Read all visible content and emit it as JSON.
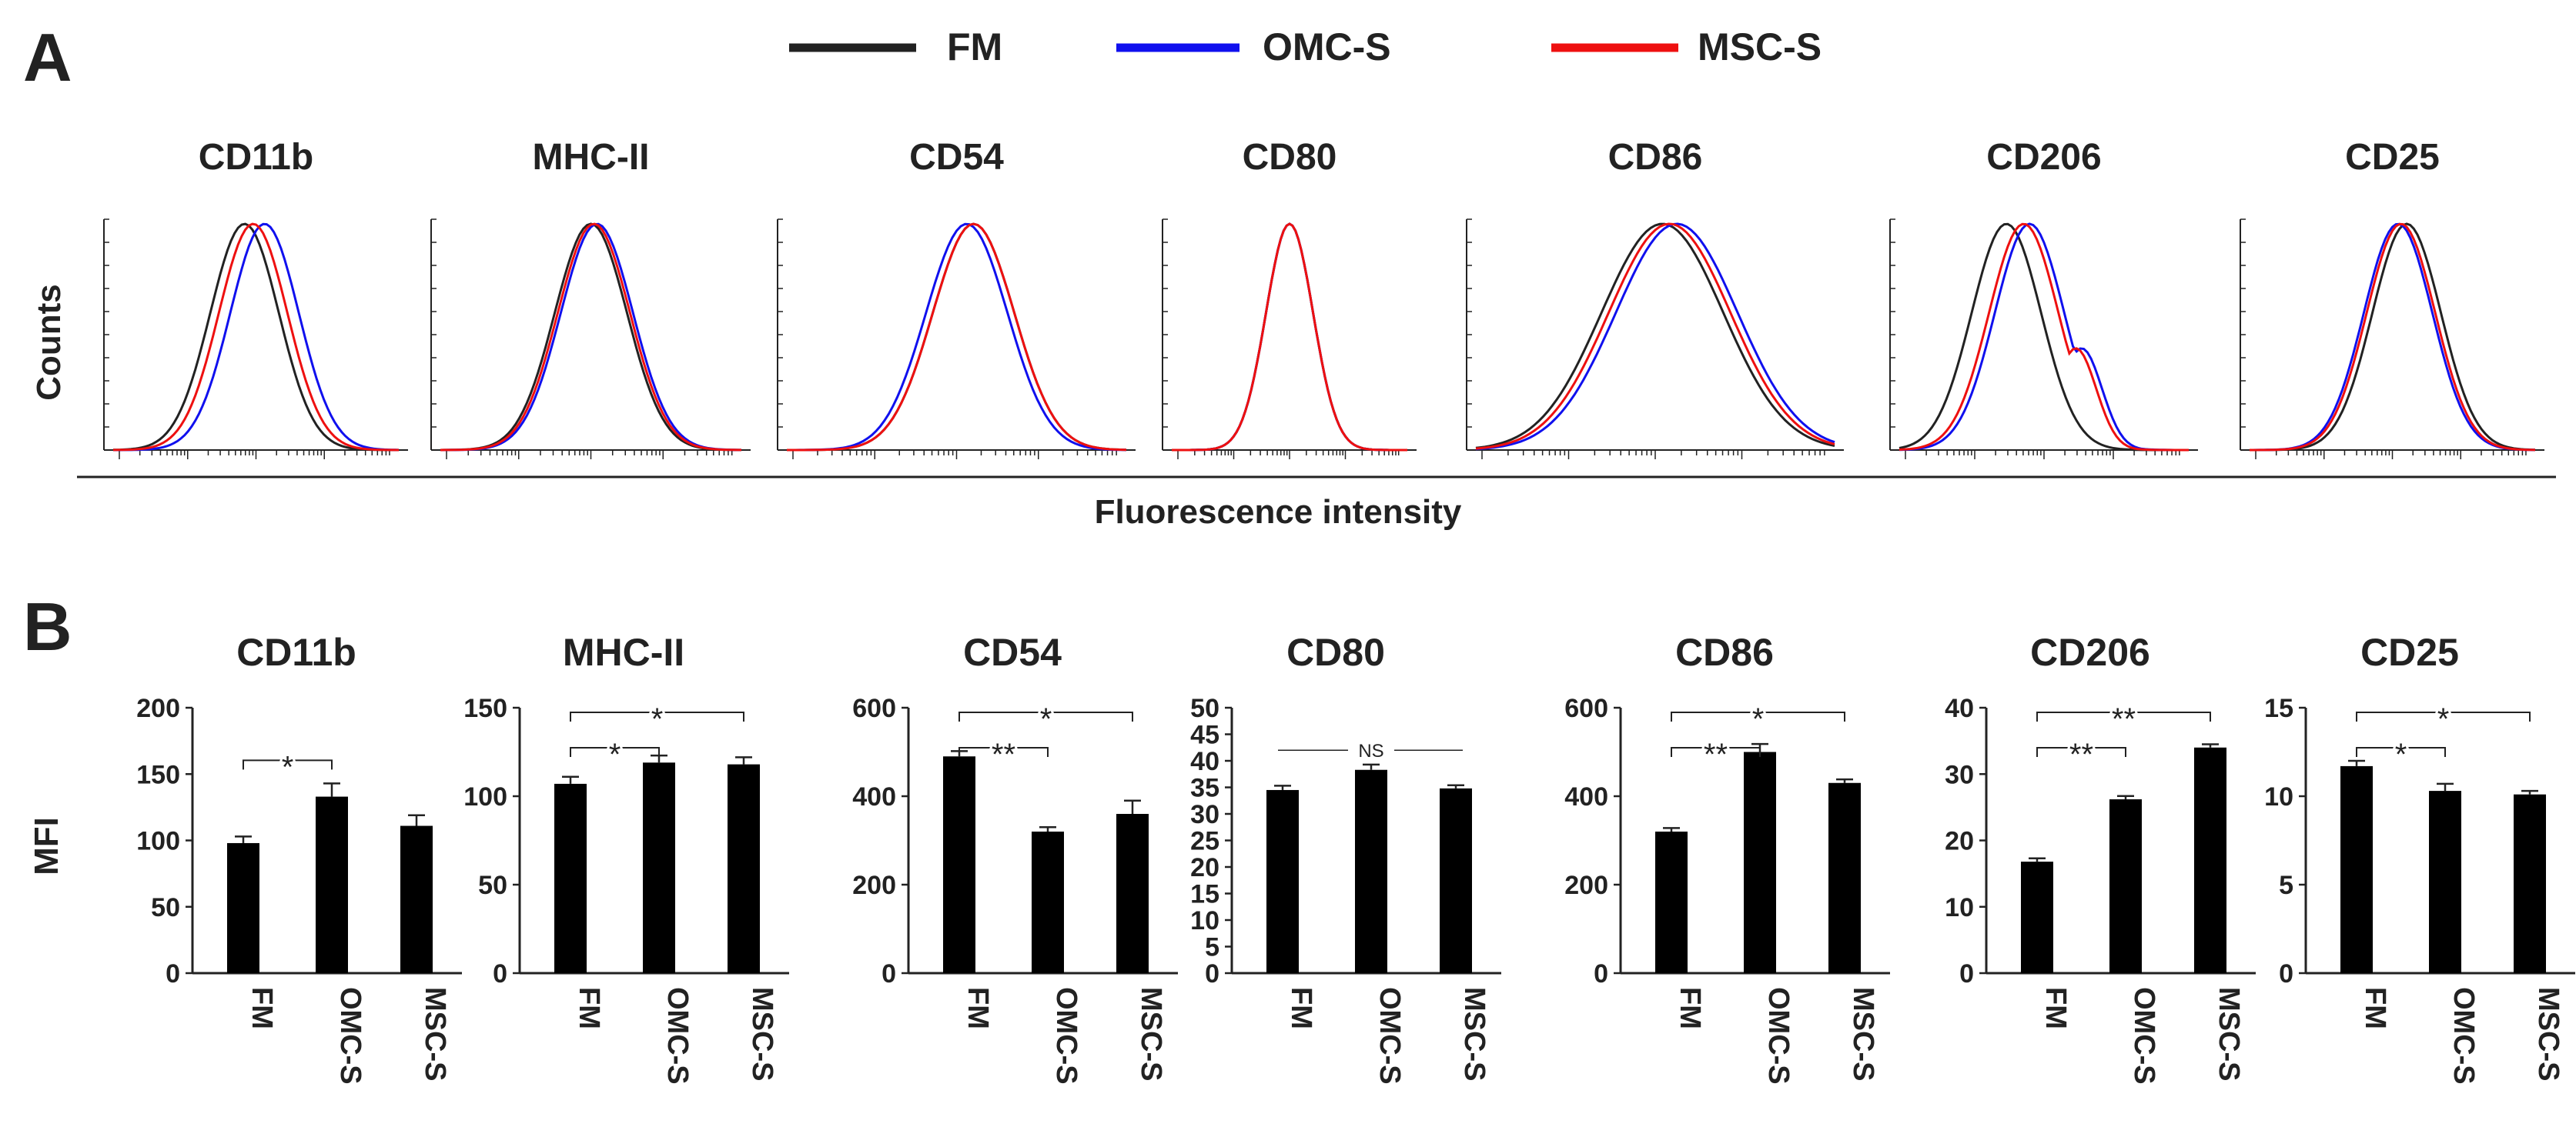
{
  "figure": {
    "panel_a_label": "A",
    "panel_b_label": "B",
    "legend": [
      {
        "name": "FM",
        "color": "#222222"
      },
      {
        "name": "OMC-S",
        "color": "#1010ee"
      },
      {
        "name": "MSC-S",
        "color": "#ee1010"
      }
    ],
    "histogram_ylabel": "Counts",
    "histogram_xlabel": "Fluorescence intensity",
    "bar_ylabel": "MFI"
  },
  "chart_data": [
    {
      "type": "histogram-overlay",
      "panel": "A",
      "ylabel": "Counts",
      "xlabel": "Fluorescence intensity",
      "xscale": "log",
      "series_order": [
        "FM",
        "OMC-S",
        "MSC-S"
      ],
      "markers": [
        {
          "title": "CD11b",
          "peaks": [
            0.46,
            0.53,
            0.49
          ]
        },
        {
          "title": "MHC-II",
          "peaks": [
            0.5,
            0.52,
            0.51
          ]
        },
        {
          "title": "CD54",
          "peaks": [
            0.55,
            0.53,
            0.55
          ]
        },
        {
          "title": "CD80",
          "peaks": [
            0.5,
            0.5,
            0.5
          ]
        },
        {
          "title": "CD86",
          "peaks": [
            0.52,
            0.56,
            0.54
          ]
        },
        {
          "title": "CD206",
          "peaks": [
            0.37,
            0.45,
            0.43
          ]
        },
        {
          "title": "CD25",
          "peaks": [
            0.55,
            0.52,
            0.53
          ]
        }
      ]
    },
    {
      "type": "bar",
      "panel": "B",
      "ylabel": "MFI",
      "categories": [
        "FM",
        "OMC-S",
        "MSC-S"
      ],
      "charts": [
        {
          "title": "CD11b",
          "values": [
            98,
            133,
            111
          ],
          "errors": [
            5,
            10,
            8
          ],
          "ylim": [
            0,
            200
          ],
          "yticks": [
            0,
            50,
            100,
            150,
            200
          ],
          "significance": [
            {
              "from": 0,
              "to": 1,
              "label": "*"
            }
          ]
        },
        {
          "title": "MHC-II",
          "values": [
            107,
            119,
            118
          ],
          "errors": [
            4,
            4,
            4
          ],
          "ylim": [
            0,
            150
          ],
          "yticks": [
            0,
            50,
            100,
            150
          ],
          "significance": [
            {
              "from": 0,
              "to": 1,
              "label": "*"
            },
            {
              "from": 0,
              "to": 2,
              "label": "*"
            }
          ]
        },
        {
          "title": "CD54",
          "values": [
            490,
            320,
            360
          ],
          "errors": [
            12,
            10,
            30
          ],
          "ylim": [
            0,
            600
          ],
          "yticks": [
            0,
            200,
            400,
            600
          ],
          "significance": [
            {
              "from": 0,
              "to": 1,
              "label": "**"
            },
            {
              "from": 0,
              "to": 2,
              "label": "*"
            }
          ]
        },
        {
          "title": "CD80",
          "values": [
            34.5,
            38.3,
            34.8
          ],
          "errors": [
            0.8,
            1.0,
            0.6
          ],
          "ylim": [
            0,
            50
          ],
          "yticks": [
            0,
            5,
            10,
            15,
            20,
            25,
            30,
            35,
            40,
            45,
            50
          ],
          "significance": [
            {
              "from": 0,
              "to": 2,
              "label": "NS"
            }
          ]
        },
        {
          "title": "CD86",
          "values": [
            320,
            500,
            430
          ],
          "errors": [
            8,
            18,
            8
          ],
          "ylim": [
            0,
            600
          ],
          "yticks": [
            0,
            200,
            400,
            600
          ],
          "significance": [
            {
              "from": 0,
              "to": 1,
              "label": "**"
            },
            {
              "from": 0,
              "to": 2,
              "label": "*"
            }
          ]
        },
        {
          "title": "CD206",
          "values": [
            16.8,
            26.2,
            34.0
          ],
          "errors": [
            0.5,
            0.5,
            0.5
          ],
          "ylim": [
            0,
            40
          ],
          "yticks": [
            0,
            10,
            20,
            30,
            40
          ],
          "significance": [
            {
              "from": 0,
              "to": 1,
              "label": "**"
            },
            {
              "from": 0,
              "to": 2,
              "label": "**"
            }
          ]
        },
        {
          "title": "CD25",
          "values": [
            11.7,
            10.3,
            10.1
          ],
          "errors": [
            0.3,
            0.4,
            0.2
          ],
          "ylim": [
            0,
            15
          ],
          "yticks": [
            0,
            5,
            10,
            15
          ],
          "significance": [
            {
              "from": 0,
              "to": 1,
              "label": "*"
            },
            {
              "from": 0,
              "to": 2,
              "label": "*"
            }
          ]
        }
      ]
    }
  ]
}
